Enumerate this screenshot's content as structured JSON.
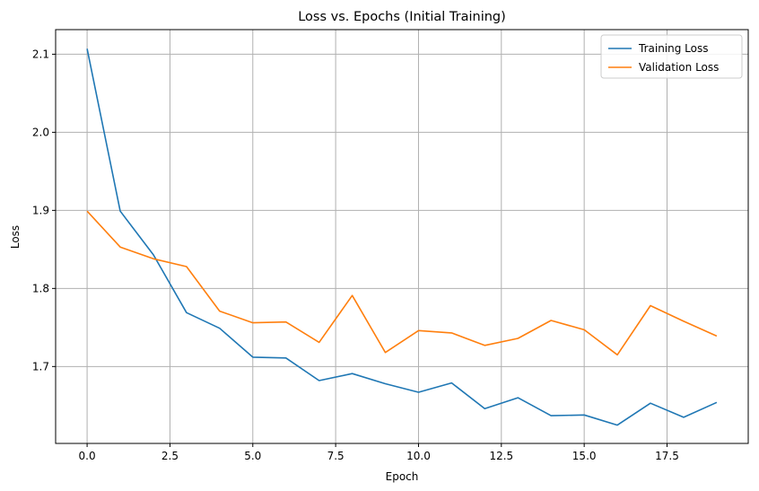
{
  "chart_data": {
    "type": "line",
    "title": "Loss vs. Epochs (Initial Training)",
    "xlabel": "Epoch",
    "ylabel": "Loss",
    "xlim": [
      -0.95,
      19.95
    ],
    "ylim": [
      1.6015,
      2.1315
    ],
    "xticks": [
      0,
      2.5,
      5,
      7.5,
      10,
      12.5,
      15,
      17.5
    ],
    "xtick_labels": [
      "0.0",
      "2.5",
      "5.0",
      "7.5",
      "10.0",
      "12.5",
      "15.0",
      "17.5"
    ],
    "yticks": [
      1.7,
      1.8,
      1.9,
      2.0,
      2.1
    ],
    "ytick_labels": [
      "1.7",
      "1.8",
      "1.9",
      "2.0",
      "2.1"
    ],
    "grid": true,
    "legend_position": "top-right",
    "x": [
      0,
      1,
      2,
      3,
      4,
      5,
      6,
      7,
      8,
      9,
      10,
      11,
      12,
      13,
      14,
      15,
      16,
      17,
      18,
      19
    ],
    "series": [
      {
        "name": "Training Loss",
        "color": "#1f77b4",
        "values": [
          2.107,
          1.899,
          1.843,
          1.769,
          1.749,
          1.712,
          1.711,
          1.682,
          1.691,
          1.678,
          1.667,
          1.679,
          1.646,
          1.66,
          1.637,
          1.638,
          1.625,
          1.653,
          1.635,
          1.654
        ]
      },
      {
        "name": "Validation Loss",
        "color": "#ff7f0e",
        "values": [
          1.899,
          1.853,
          1.838,
          1.828,
          1.771,
          1.756,
          1.757,
          1.731,
          1.791,
          1.718,
          1.746,
          1.743,
          1.727,
          1.736,
          1.759,
          1.747,
          1.715,
          1.778,
          1.758,
          1.739
        ]
      }
    ]
  }
}
